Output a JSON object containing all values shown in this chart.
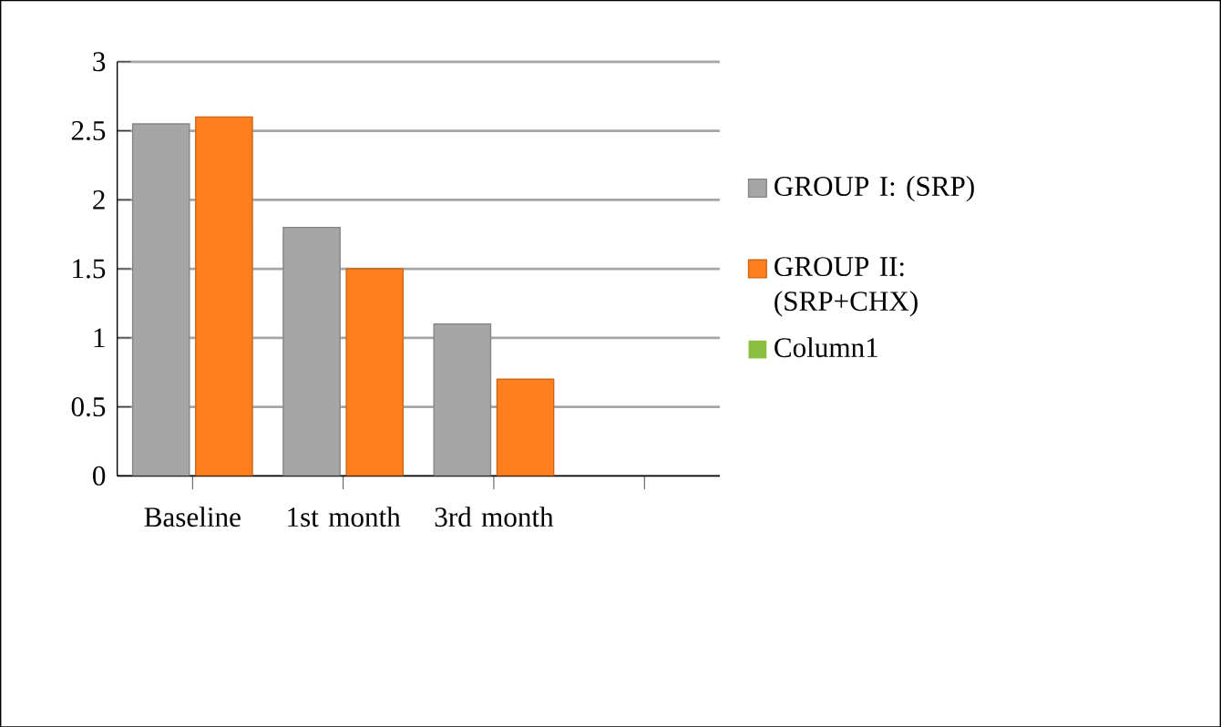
{
  "chart_data": {
    "type": "bar",
    "categories": [
      "Baseline",
      "1st month",
      "3rd month",
      null
    ],
    "series": [
      {
        "name": "GROUP I: (SRP)",
        "color": "#a6a6a6",
        "values": [
          2.55,
          1.8,
          1.1,
          null
        ]
      },
      {
        "name": "GROUP II: (SRP+CHX)",
        "color": "#ff7f1f",
        "values": [
          2.6,
          1.5,
          0.7,
          null
        ]
      },
      {
        "name": "Column1",
        "color": "#8cbf3f",
        "values": [
          null,
          null,
          null,
          null
        ]
      }
    ],
    "ylim": [
      0,
      3
    ],
    "yticks": [
      0,
      0.5,
      1,
      1.5,
      2,
      2.5,
      3
    ],
    "grid": "y",
    "legend": "right"
  }
}
